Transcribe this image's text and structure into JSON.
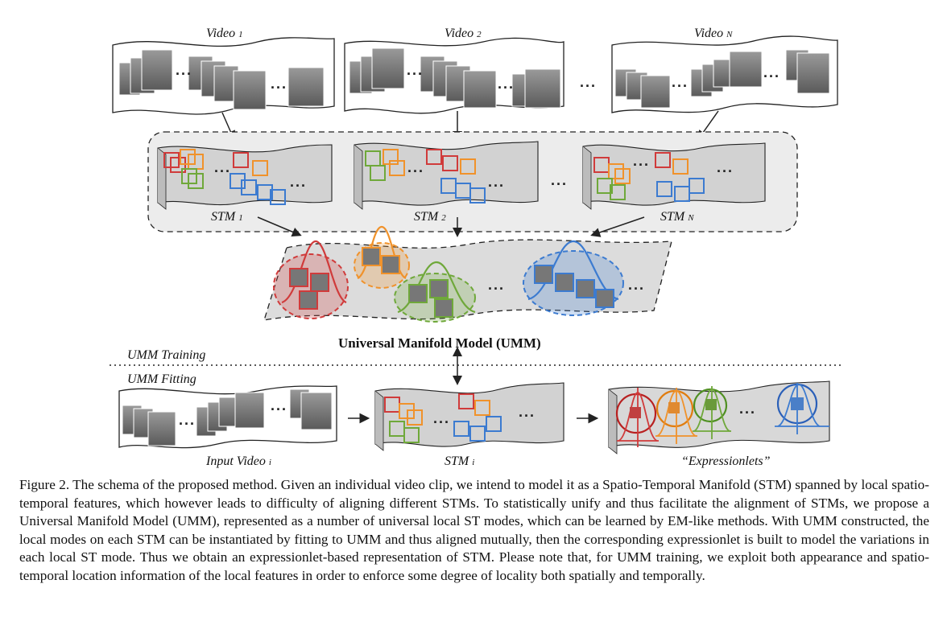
{
  "labels": {
    "video1": "Video",
    "video1_sub": "1",
    "video2": "Video",
    "video2_sub": "2",
    "videoN": "Video",
    "videoN_sub": "N",
    "stm1": "STM",
    "stm1_sub": "1",
    "stm2": "STM",
    "stm2_sub": "2",
    "stmN": "STM",
    "stmN_sub": "N",
    "umm_title": "Universal Manifold Model (UMM)",
    "umm_training": "UMM Training",
    "umm_fitting": "UMM Fitting",
    "input_video": "Input Video",
    "input_video_sub": "i",
    "stm_i": "STM",
    "stm_i_sub": "i",
    "expressionlets": "“Expressionlets”",
    "ellipsis": "..."
  },
  "colors": {
    "mode_red": "#d03b3b",
    "mode_orange": "#f0922b",
    "mode_green": "#6fa83a",
    "mode_blue": "#3c7bd0",
    "manifold_fill": "#d9d9d9",
    "panel_fill": "#eeeeee"
  },
  "caption": "Figure 2. The schema of the proposed method. Given an individual video clip, we intend to model it as a Spatio-Temporal Manifold (STM) spanned by local spatio-temporal features, which however leads to difficulty of aligning different STMs. To statistically unify and thus facilitate the alignment of STMs, we propose a Universal Manifold Model (UMM), represented as a number of universal local ST modes, which can be learned by EM-like methods. With UMM constructed, the local modes on each STM can be instantiated by fitting to UMM and thus aligned mutually, then the corresponding expressionlet is built to model the variations in each local ST mode. Thus we obtain an expressionlet-based representation of STM. Please note that, for UMM training, we exploit both appearance and spatio-temporal location information of the local features in order to enforce some degree of locality both spatially and temporally."
}
